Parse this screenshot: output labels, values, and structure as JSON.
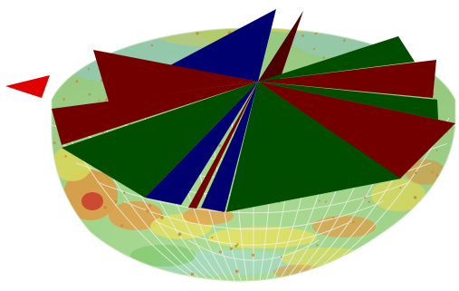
{
  "colors": {
    "background": "#ffffff",
    "bowl_base": "#a4da8c",
    "bowl_green": "#7fca6a",
    "bowl_yellow": "#e2e05a",
    "bowl_orange": "#e89a3c",
    "bowl_red": "#d2452a",
    "bowl_cyan": "#9fd8c6",
    "grid_line": "#f2f2ea",
    "dot": "#c98a2e",
    "wedge_blue": "#00006e",
    "wedge_dark_red": "#730000",
    "wedge_green": "#004d00",
    "wedge_maroon": "#4d0000",
    "pointer": "#e00000"
  },
  "view": {
    "subject": "hemisphere-bowl-with-radial-wedges",
    "pointer_icon": "red-triangle-pointer",
    "wedge_sequence": [
      "blue",
      "maroon",
      "green",
      "dark_red",
      "green",
      "dark_red",
      "green",
      "blue",
      "dark_red",
      "blue",
      "green",
      "dark_red",
      "green",
      "dark_red"
    ]
  }
}
